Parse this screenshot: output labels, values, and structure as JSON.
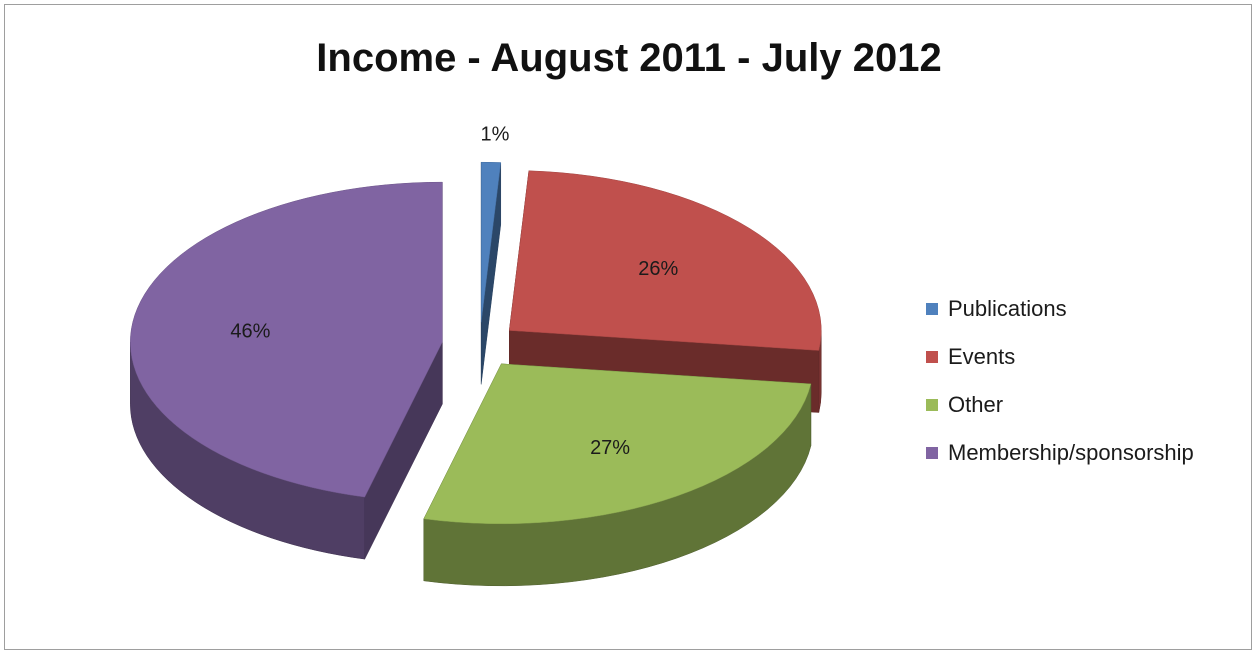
{
  "chart_data": {
    "type": "pie",
    "title": "Income - August 2011 - July 2012",
    "labels": [
      "Publications",
      "Events",
      "Other",
      "Membership/sponsorship"
    ],
    "values": [
      1,
      26,
      27,
      46
    ],
    "data_labels": [
      "1%",
      "26%",
      "27%",
      "46%"
    ],
    "colors": [
      "#4f81bd",
      "#c0504d",
      "#9bbb59",
      "#8064a2"
    ],
    "legend_position": "right",
    "style": "3d-exploded"
  }
}
